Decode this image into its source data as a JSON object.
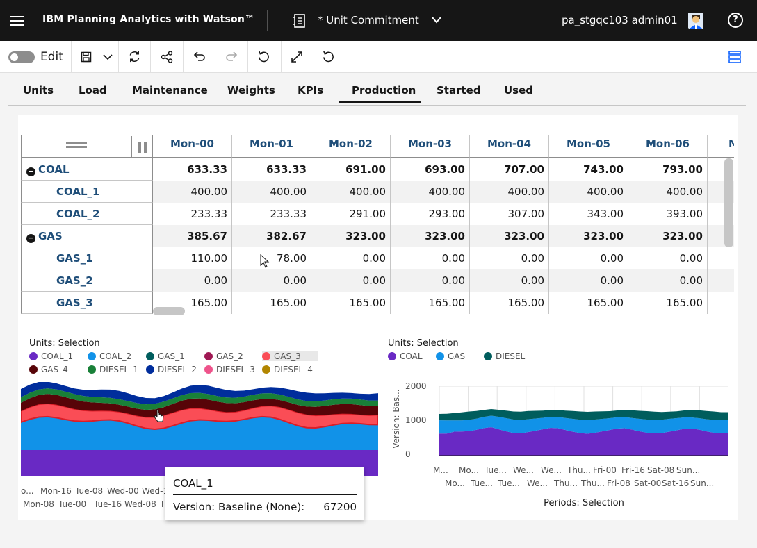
{
  "header": {
    "app_title": "IBM Planning Analytics with Watson™",
    "book_title": "* Unit Commitment",
    "user": "pa_stgqc103 admin01",
    "help": "?"
  },
  "toolbar": {
    "edit_label": "Edit"
  },
  "tabs": [
    "Units",
    "Load",
    "Maintenance",
    "Weights",
    "KPIs",
    "Production",
    "Started",
    "Used"
  ],
  "active_tab": "Production",
  "grid": {
    "columns": [
      "Mon-00",
      "Mon-01",
      "Mon-02",
      "Mon-03",
      "Mon-04",
      "Mon-05",
      "Mon-06",
      "M"
    ],
    "rows": [
      {
        "label": "COAL",
        "group": true,
        "values": [
          "633.33",
          "633.33",
          "691.00",
          "693.00",
          "707.00",
          "743.00",
          "793.00"
        ]
      },
      {
        "label": "COAL_1",
        "group": false,
        "values": [
          "400.00",
          "400.00",
          "400.00",
          "400.00",
          "400.00",
          "400.00",
          "400.00"
        ]
      },
      {
        "label": "COAL_2",
        "group": false,
        "values": [
          "233.33",
          "233.33",
          "291.00",
          "293.00",
          "307.00",
          "343.00",
          "393.00"
        ]
      },
      {
        "label": "GAS",
        "group": true,
        "values": [
          "385.67",
          "382.67",
          "323.00",
          "323.00",
          "323.00",
          "323.00",
          "323.00"
        ]
      },
      {
        "label": "GAS_1",
        "group": false,
        "values": [
          "110.00",
          "78.00",
          "0.00",
          "0.00",
          "0.00",
          "0.00",
          "0.00"
        ]
      },
      {
        "label": "GAS_2",
        "group": false,
        "values": [
          "0.00",
          "0.00",
          "0.00",
          "0.00",
          "0.00",
          "0.00",
          "0.00"
        ]
      },
      {
        "label": "GAS_3",
        "group": false,
        "values": [
          "165.00",
          "165.00",
          "165.00",
          "165.00",
          "165.00",
          "165.00",
          "165.00"
        ]
      }
    ]
  },
  "chart_left": {
    "legend_title": "Units: Selection",
    "legend": [
      {
        "name": "COAL_1",
        "color": "#6929c4"
      },
      {
        "name": "COAL_2",
        "color": "#1192e8"
      },
      {
        "name": "GAS_1",
        "color": "#005d5d"
      },
      {
        "name": "GAS_2",
        "color": "#9f1853"
      },
      {
        "name": "GAS_3",
        "color": "#fa4d56"
      },
      {
        "name": "GAS_4",
        "color": "#570408"
      },
      {
        "name": "DIESEL_1",
        "color": "#198038"
      },
      {
        "name": "DIESEL_2",
        "color": "#002d9c"
      },
      {
        "name": "DIESEL_3",
        "color": "#ee538b"
      },
      {
        "name": "DIESEL_4",
        "color": "#b28600"
      }
    ],
    "x_ticks_row1": [
      "o...",
      "Mon-16",
      "Tue-08",
      "Wed-00",
      "Wed-1"
    ],
    "x_ticks_row2": [
      "Mon-08",
      "Tue-00",
      "Tue-16",
      "Wed-08",
      "T"
    ]
  },
  "tooltip": {
    "title": "COAL_1",
    "label": "Version: Baseline (None):",
    "value": "67200"
  },
  "chart_data": {
    "type": "area",
    "title": "",
    "legend_title": "Units: Selection",
    "xlabel": "Periods: Selection",
    "ylabel": "Version: Bas...",
    "ylim": [
      0,
      2000
    ],
    "y_ticks": [
      "2000",
      "1000",
      "0"
    ],
    "x_ticks_row1": [
      "M...",
      "Mo...",
      "Tue...",
      "We...",
      "We...",
      "Thu...",
      "Fri-00",
      "Fri-16",
      "Sat-08",
      "Sun..."
    ],
    "x_ticks_row2": [
      "Mo...",
      "Tue...",
      "Tue...",
      "We...",
      "Thu...",
      "Thu...",
      "Fri-08",
      "Sat-00",
      "Sat-16",
      "Sun..."
    ],
    "series": [
      {
        "name": "COAL",
        "color": "#6929c4",
        "values": [
          633,
          633,
          691,
          693,
          707,
          743,
          793,
          820,
          760,
          700,
          650,
          640,
          680,
          720,
          760,
          800,
          790,
          740,
          690,
          650,
          630,
          660,
          700,
          740,
          780,
          790,
          750,
          700,
          660,
          640,
          650,
          690,
          730,
          770,
          780,
          750,
          700,
          660,
          640,
          650
        ]
      },
      {
        "name": "GAS",
        "color": "#1192e8",
        "values": [
          386,
          383,
          323,
          323,
          323,
          323,
          323,
          330,
          360,
          380,
          390,
          385,
          370,
          350,
          330,
          320,
          325,
          345,
          370,
          385,
          390,
          380,
          360,
          340,
          325,
          320,
          335,
          360,
          380,
          390,
          385,
          370,
          350,
          330,
          320,
          330,
          350,
          370,
          380,
          385
        ]
      },
      {
        "name": "DIESEL",
        "color": "#005d5d",
        "values": [
          180,
          190,
          210,
          230,
          240,
          220,
          200,
          190,
          200,
          215,
          230,
          240,
          235,
          220,
          205,
          195,
          200,
          210,
          225,
          235,
          240,
          230,
          215,
          200,
          195,
          205,
          220,
          230,
          240,
          235,
          220,
          205,
          195,
          200,
          215,
          225,
          235,
          240,
          230,
          215
        ]
      }
    ],
    "legend": [
      {
        "name": "COAL",
        "color": "#6929c4"
      },
      {
        "name": "GAS",
        "color": "#1192e8"
      },
      {
        "name": "DIESEL",
        "color": "#005d5d"
      }
    ]
  }
}
